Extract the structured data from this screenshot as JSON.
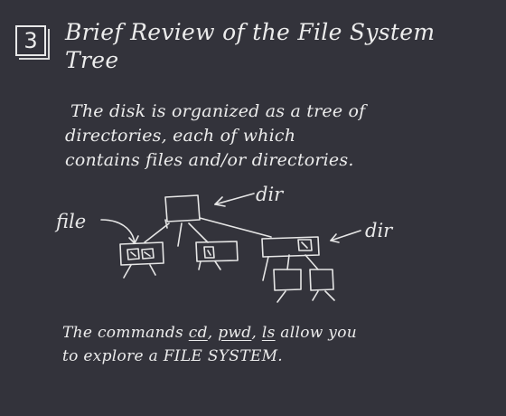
{
  "slide": {
    "number": "3",
    "title_line1": "Brief Review of the File System",
    "title_line2": "Tree"
  },
  "description": {
    "line1": "The disk is organized as a tree  of",
    "line2": "directories, each of which",
    "line3": "contains files and/or directories."
  },
  "diagram": {
    "file_label": "file",
    "dir_label_top": "dir",
    "dir_label_right": "dir"
  },
  "commands": {
    "prefix": "The commands ",
    "cd": "cd",
    "sep1": ", ",
    "pwd": "pwd",
    "sep2": ", ",
    "ls": "ls",
    "suffix": " allow you",
    "line2": "to explore a  FILE SYSTEM."
  }
}
